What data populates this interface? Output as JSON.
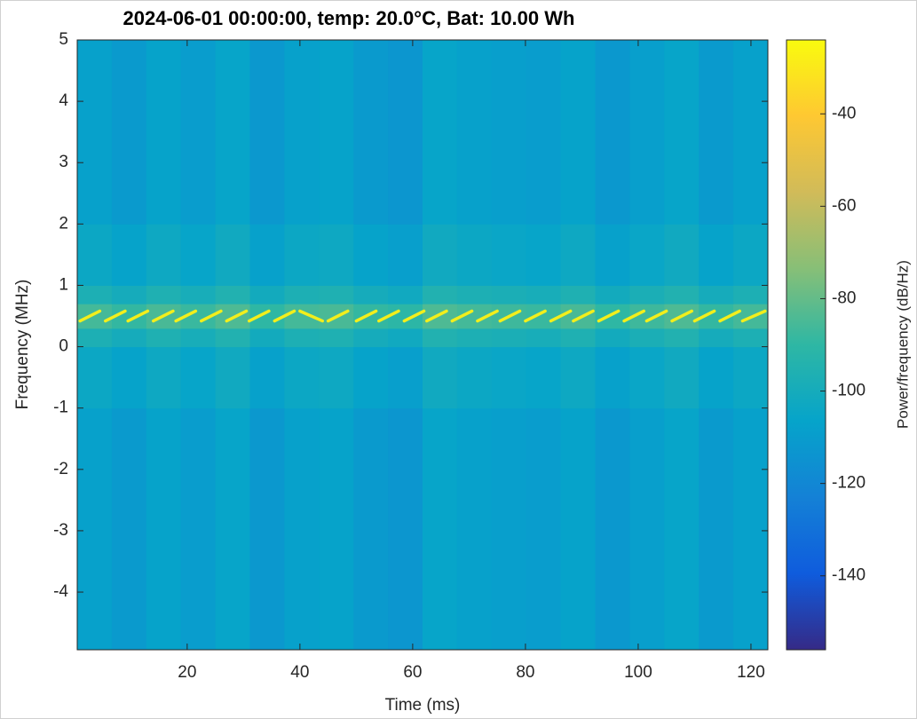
{
  "chart_data": {
    "type": "heatmap",
    "title": "2024-06-01 00:00:00, temp: 20.0°C, Bat: 10.00 Wh",
    "x_label": "Time (ms)",
    "y_label": "Frequency (MHz)",
    "colorbar_label": "Power/frequency (dB/Hz)",
    "x": [
      0.5,
      6.625,
      12.75,
      18.875,
      25,
      31.125,
      37.25,
      43.375,
      49.5,
      55.625,
      61.75,
      67.875,
      74,
      80.125,
      86.25,
      92.375,
      98.5,
      104.625,
      110.75,
      116.875,
      123
    ],
    "y": [
      -4.94,
      -1,
      0,
      0.3,
      0.7,
      1,
      2,
      5
    ],
    "values": [
      [
        -108,
        -111,
        -107,
        -110,
        -106,
        -112,
        -108,
        -107,
        -111,
        -113,
        -106,
        -108,
        -109,
        -110,
        -107,
        -112,
        -109,
        -106,
        -111,
        -108
      ],
      [
        -104,
        -107,
        -103,
        -106,
        -102,
        -108,
        -104,
        -103,
        -107,
        -109,
        -102,
        -104,
        -105,
        -106,
        -103,
        -108,
        -105,
        -102,
        -107,
        -104
      ],
      [
        -97,
        -100,
        -96,
        -99,
        -95,
        -101,
        -97,
        -96,
        -100,
        -102,
        -95,
        -97,
        -98,
        -99,
        -96,
        -101,
        -98,
        -95,
        -100,
        -97
      ],
      [
        -86,
        -89,
        -85,
        -88,
        -84,
        -90,
        -86,
        -85,
        -89,
        -91,
        -84,
        -86,
        -87,
        -88,
        -85,
        -90,
        -87,
        -84,
        -89,
        -86
      ],
      [
        -97,
        -100,
        -96,
        -99,
        -95,
        -101,
        -97,
        -96,
        -100,
        -102,
        -95,
        -97,
        -98,
        -99,
        -96,
        -101,
        -98,
        -95,
        -100,
        -97
      ],
      [
        -104,
        -107,
        -103,
        -106,
        -102,
        -108,
        -104,
        -103,
        -107,
        -109,
        -102,
        -104,
        -105,
        -106,
        -103,
        -108,
        -105,
        -102,
        -107,
        -104
      ],
      [
        -108,
        -111,
        -107,
        -110,
        -106,
        -112,
        -108,
        -107,
        -111,
        -113,
        -106,
        -108,
        -109,
        -110,
        -107,
        -112,
        -109,
        -106,
        -111,
        -108
      ]
    ],
    "ridge": {
      "color": "#f2ee1c",
      "x": [
        1,
        4.5,
        null,
        5.5,
        9,
        null,
        9.5,
        13,
        null,
        14,
        17.5,
        null,
        18,
        21.5,
        null,
        22.5,
        26,
        null,
        27,
        30.5,
        null,
        31,
        34.5,
        null,
        35.5,
        39,
        null,
        40,
        44,
        null,
        45,
        48.5,
        null,
        50,
        53.5,
        null,
        54,
        57.5,
        null,
        58.5,
        62,
        null,
        62.5,
        66,
        null,
        67,
        70.5,
        null,
        71.5,
        75,
        null,
        75.5,
        79,
        null,
        80,
        83.5,
        null,
        84.5,
        88,
        null,
        88.5,
        92,
        null,
        93,
        96.5,
        null,
        97.5,
        101,
        null,
        101.5,
        105,
        null,
        106,
        109.5,
        null,
        110,
        113.5,
        null,
        114.5,
        118,
        null,
        118.5,
        122.5
      ],
      "y": [
        0.42,
        0.58,
        null,
        0.42,
        0.58,
        null,
        0.42,
        0.58,
        null,
        0.42,
        0.58,
        null,
        0.42,
        0.58,
        null,
        0.42,
        0.58,
        null,
        0.42,
        0.58,
        null,
        0.42,
        0.58,
        null,
        0.42,
        0.58,
        null,
        0.58,
        0.42,
        null,
        0.42,
        0.58,
        null,
        0.42,
        0.58,
        null,
        0.42,
        0.58,
        null,
        0.42,
        0.58,
        null,
        0.42,
        0.58,
        null,
        0.42,
        0.58,
        null,
        0.42,
        0.58,
        null,
        0.42,
        0.58,
        null,
        0.42,
        0.58,
        null,
        0.42,
        0.58,
        null,
        0.42,
        0.58,
        null,
        0.42,
        0.58,
        null,
        0.42,
        0.58,
        null,
        0.42,
        0.58,
        null,
        0.42,
        0.58,
        null,
        0.42,
        0.58,
        null,
        0.42,
        0.58,
        null,
        0.42,
        0.58
      ]
    },
    "xlim": [
      0.5,
      123
    ],
    "ylim": [
      -4.94,
      5
    ],
    "clim": [
      -156,
      -24
    ],
    "xticks": [
      20,
      40,
      60,
      80,
      100,
      120
    ],
    "yticks": [
      -4,
      -3,
      -2,
      -1,
      0,
      1,
      2,
      3,
      4,
      5
    ],
    "cticks": [
      -140,
      -120,
      -100,
      -80,
      -60,
      -40
    ],
    "colormap": [
      "#352a87",
      "#0f5cdd",
      "#1481d6",
      "#06a4ca",
      "#2eb7a4",
      "#87bf77",
      "#d1bb59",
      "#fec832",
      "#f9fb0e"
    ]
  }
}
